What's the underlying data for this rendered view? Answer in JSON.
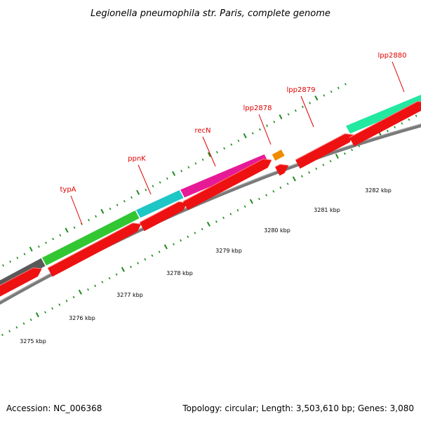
{
  "title": "Legionella pneumophila str. Paris, complete genome",
  "footer": {
    "accession": "Accession: NC_006368",
    "info": "Topology: circular; Length: 3,503,610 bp; Genes: 3,080"
  },
  "colors": {
    "backbone": "#7a7a7a",
    "cds": "#ee1111",
    "tick": "#1d8a1d",
    "label": "#e00000",
    "unnamed_gene": "#595959"
  },
  "genes": [
    {
      "name": "",
      "color": "#595959"
    },
    {
      "name": "typA",
      "color": "#33c633"
    },
    {
      "name": "ppnK",
      "color": "#1ec6c6"
    },
    {
      "name": "recN",
      "color": "#e61a96"
    },
    {
      "name": "lpp2878",
      "color": "#f08c00"
    },
    {
      "name": "lpp2879",
      "color": ""
    },
    {
      "name": "lpp2880",
      "color": "#22e8a0"
    }
  ],
  "scale_labels": [
    "3275 kbp",
    "3276 kbp",
    "3277 kbp",
    "3278 kbp",
    "3279 kbp",
    "3280 kbp",
    "3281 kbp",
    "3282 kbp"
  ]
}
